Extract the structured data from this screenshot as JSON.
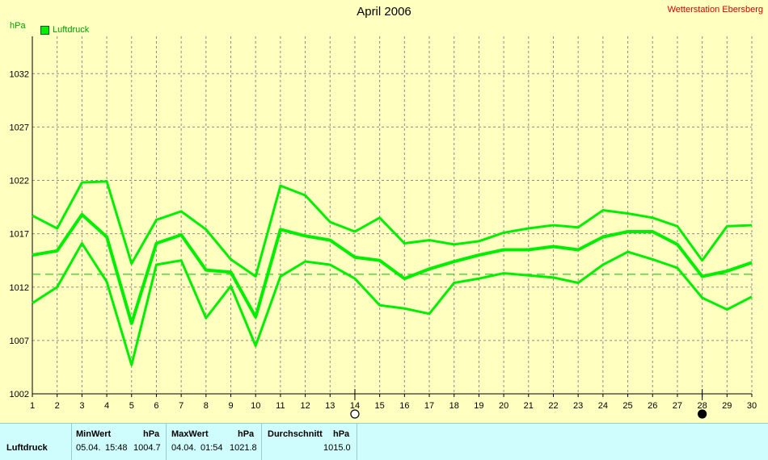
{
  "header": {
    "title": "April 2006",
    "station": "Wetterstation Ebersberg",
    "unit": "hPa",
    "legend_label": "Luftdruck"
  },
  "colors": {
    "background": "#ffffc0",
    "line": "#00ee00",
    "station": "#d00000",
    "footer": "#cffcfc"
  },
  "chart_data": {
    "type": "line",
    "title": "April 2006",
    "ylabel": "hPa",
    "xlabel": "",
    "x": [
      1,
      2,
      3,
      4,
      5,
      6,
      7,
      8,
      9,
      10,
      11,
      12,
      13,
      14,
      15,
      16,
      17,
      18,
      19,
      20,
      21,
      22,
      23,
      24,
      25,
      26,
      27,
      28,
      29,
      30
    ],
    "xlim": [
      1,
      30
    ],
    "ylim": [
      1002,
      1035.5
    ],
    "yticks": [
      1002,
      1007,
      1012,
      1017,
      1022,
      1027,
      1032
    ],
    "reference_line": 1013.2,
    "grid": true,
    "series": [
      {
        "name": "Luftdruck",
        "role": "max",
        "values": [
          1018.7,
          1017.5,
          1021.8,
          1021.9,
          1014.2,
          1018.3,
          1019.1,
          1017.4,
          1014.6,
          1013.0,
          1021.5,
          1020.6,
          1018.1,
          1017.2,
          1018.5,
          1016.1,
          1016.4,
          1016.0,
          1016.3,
          1017.1,
          1017.5,
          1017.8,
          1017.6,
          1019.2,
          1018.9,
          1018.5,
          1017.7,
          1014.5,
          1017.7,
          1017.8
        ]
      },
      {
        "name": "Luftdruck",
        "role": "avg",
        "values": [
          1015.0,
          1015.4,
          1018.8,
          1016.7,
          1008.6,
          1016.1,
          1016.9,
          1013.6,
          1013.4,
          1009.2,
          1017.4,
          1016.8,
          1016.4,
          1014.8,
          1014.5,
          1012.8,
          1013.7,
          1014.4,
          1015.0,
          1015.5,
          1015.5,
          1015.8,
          1015.5,
          1016.7,
          1017.2,
          1017.2,
          1016.0,
          1013.0,
          1013.5,
          1014.3
        ]
      },
      {
        "name": "Luftdruck",
        "role": "min",
        "values": [
          1010.5,
          1012.0,
          1016.1,
          1012.5,
          1004.7,
          1014.1,
          1014.5,
          1009.1,
          1012.1,
          1006.5,
          1013.0,
          1014.4,
          1014.1,
          1012.8,
          1010.3,
          1010.0,
          1009.5,
          1012.4,
          1012.8,
          1013.3,
          1013.1,
          1012.9,
          1012.4,
          1014.1,
          1015.3,
          1014.6,
          1013.8,
          1011.0,
          1009.9,
          1011.1
        ]
      }
    ],
    "markers": [
      {
        "day": 14,
        "symbol": "open-circle"
      },
      {
        "day": 28,
        "symbol": "filled-circle"
      }
    ]
  },
  "table": {
    "row_label": "Luftdruck",
    "min": {
      "header": "MinWert",
      "unit": "hPa",
      "date": "05.04.",
      "time": "15:48",
      "value": "1004.7"
    },
    "max": {
      "header": "MaxWert",
      "unit": "hPa",
      "date": "04.04.",
      "time": "01:54",
      "value": "1021.8"
    },
    "avg": {
      "header": "Durchschnitt",
      "unit": "hPa",
      "value": "1015.0"
    }
  }
}
